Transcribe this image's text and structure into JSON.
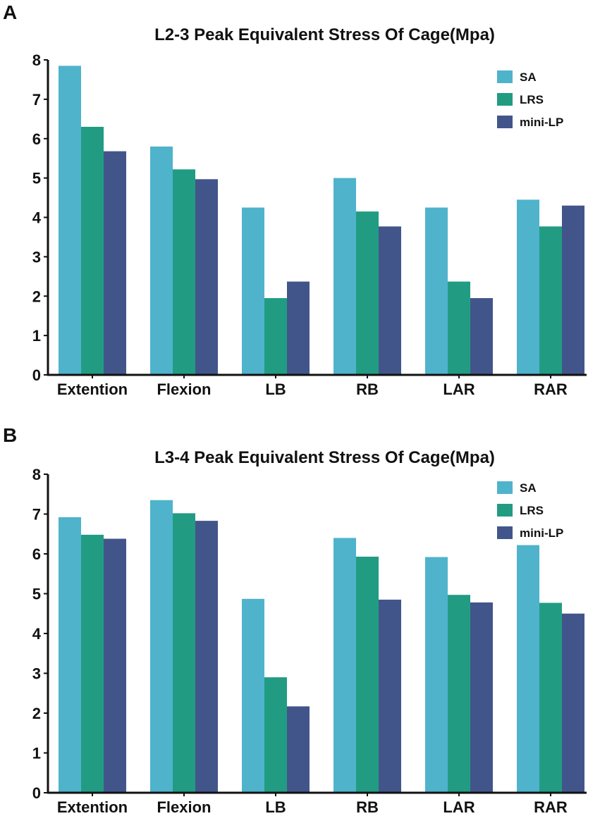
{
  "panels": [
    {
      "letter": "A",
      "title": "L2-3 Peak Equivalent Stress Of Cage(Mpa)"
    },
    {
      "letter": "B",
      "title": "L3-4 Peak Equivalent Stress Of Cage(Mpa)"
    }
  ],
  "colors": {
    "SA": "#4fb3cc",
    "LRS": "#219c82",
    "mini-LP": "#42558b"
  },
  "chart_data": [
    {
      "type": "bar",
      "title": "L2-3 Peak Equivalent Stress Of Cage(Mpa)",
      "xlabel": "",
      "ylabel": "",
      "categories": [
        "Extention",
        "Flexion",
        "LB",
        "RB",
        "LAR",
        "RAR"
      ],
      "ylim": [
        0,
        8
      ],
      "yticks": [
        0,
        1,
        2,
        3,
        4,
        5,
        6,
        7,
        8
      ],
      "legend_position": "top-right",
      "series": [
        {
          "name": "SA",
          "values": [
            7.85,
            5.8,
            4.25,
            5.0,
            4.25,
            4.45
          ]
        },
        {
          "name": "LRS",
          "values": [
            6.3,
            5.22,
            1.95,
            4.15,
            2.37,
            3.77
          ]
        },
        {
          "name": "mini-LP",
          "values": [
            5.68,
            4.97,
            2.37,
            3.77,
            1.95,
            4.3
          ]
        }
      ]
    },
    {
      "type": "bar",
      "title": "L3-4 Peak Equivalent Stress Of Cage(Mpa)",
      "xlabel": "",
      "ylabel": "",
      "categories": [
        "Extention",
        "Flexion",
        "LB",
        "RB",
        "LAR",
        "RAR"
      ],
      "ylim": [
        0,
        8
      ],
      "yticks": [
        0,
        1,
        2,
        3,
        4,
        5,
        6,
        7,
        8
      ],
      "legend_position": "top-right",
      "series": [
        {
          "name": "SA",
          "values": [
            6.92,
            7.35,
            4.87,
            6.4,
            5.92,
            6.22
          ]
        },
        {
          "name": "LRS",
          "values": [
            6.48,
            7.02,
            2.9,
            5.93,
            4.97,
            4.77
          ]
        },
        {
          "name": "mini-LP",
          "values": [
            6.38,
            6.83,
            2.17,
            4.85,
            4.78,
            4.5
          ]
        }
      ]
    }
  ]
}
